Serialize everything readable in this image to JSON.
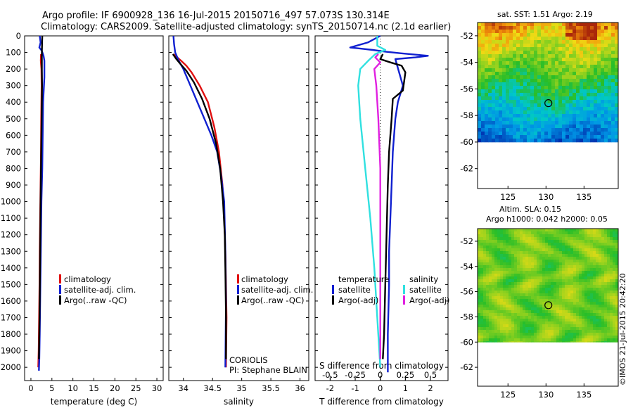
{
  "header": {
    "line1": "Argo profile: IF 6900928_136 16-Jul-2015 20150716_497 57.073S 130.314E",
    "line2": "Climatology: CARS2009. Satellite-adjusted climatology: synTS_20150714.nc (2.1d earlier)"
  },
  "footer": {
    "credit": "©IMOS 21-Jul-2015 20:42:20"
  },
  "colors": {
    "climatology": "#e01010",
    "satellite": "#1020d0",
    "argo": "#000000",
    "salinity_satellite": "#30e0e0",
    "salinity_argo": "#e020e0"
  },
  "chart_data": [
    {
      "type": "line",
      "xlabel": "temperature (deg C)",
      "xlim": [
        -1.5,
        31.5
      ],
      "xticks": [
        0,
        5,
        10,
        15,
        20,
        25,
        30
      ],
      "ylim": [
        2080,
        0
      ],
      "yticks": [
        0,
        100,
        200,
        300,
        400,
        500,
        600,
        700,
        800,
        900,
        1000,
        1100,
        1200,
        1300,
        1400,
        1500,
        1600,
        1700,
        1800,
        1900,
        2000
      ],
      "legend": {
        "position": "lower-middle",
        "entries": [
          "climatology",
          "satellite-adj. clim.",
          "Argo(..raw -QC)"
        ]
      },
      "series": [
        {
          "name": "climatology",
          "color": "#e01010",
          "x": [
            2.4,
            2.35,
            2.5,
            2.55,
            2.5,
            2.45,
            2.4,
            2.3,
            2.2,
            2.1,
            2.05,
            1.95,
            1.85,
            1.75
          ],
          "y": [
            110,
            150,
            200,
            300,
            400,
            500,
            700,
            900,
            1100,
            1300,
            1500,
            1700,
            1900,
            2000
          ]
        },
        {
          "name": "satellite-adj. clim.",
          "color": "#1020d0",
          "x": [
            2.1,
            2.3,
            2.0,
            2.6,
            3.0,
            3.2,
            3.2,
            2.9,
            2.8,
            2.7,
            2.5,
            2.4,
            2.3,
            2.2,
            2.1,
            2.0,
            1.9
          ],
          "y": [
            0,
            40,
            70,
            90,
            120,
            150,
            250,
            400,
            600,
            800,
            1000,
            1200,
            1400,
            1600,
            1800,
            1950,
            2020
          ]
        },
        {
          "name": "Argo(..raw -QC)",
          "color": "#000000",
          "x": [
            2.7,
            2.6,
            2.6,
            2.65,
            2.6,
            2.5,
            2.4,
            2.3,
            2.2,
            2.1,
            2.0,
            1.9
          ],
          "y": [
            0,
            100,
            200,
            300,
            400,
            600,
            800,
            1000,
            1300,
            1600,
            1800,
            1950
          ]
        }
      ]
    },
    {
      "type": "line",
      "xlabel": "salinity",
      "xlim": [
        33.75,
        36.15
      ],
      "xticks": [
        34,
        34.5,
        35,
        35.5,
        36
      ],
      "ylim": [
        2080,
        0
      ],
      "legend": {
        "position": "lower-right",
        "entries": [
          "climatology",
          "satellite-adj. clim.",
          "Argo(..raw -QC)"
        ]
      },
      "annotations": [
        "CORIOLIS",
        "PI: Stephane BLAIN"
      ],
      "series": [
        {
          "name": "climatology",
          "color": "#e01010",
          "x": [
            33.83,
            33.96,
            34.05,
            34.14,
            34.28,
            34.42,
            34.53,
            34.61,
            34.67,
            34.7,
            34.72,
            34.73,
            34.74,
            34.73
          ],
          "y": [
            110,
            150,
            180,
            220,
            300,
            400,
            550,
            700,
            900,
            1100,
            1300,
            1500,
            1700,
            2000
          ]
        },
        {
          "name": "satellite-adj. clim.",
          "color": "#1020d0",
          "x": [
            33.83,
            33.84,
            33.86,
            33.92,
            34.0,
            34.12,
            34.24,
            34.36,
            34.48,
            34.58,
            34.65,
            34.7,
            34.72,
            34.73,
            34.72
          ],
          "y": [
            0,
            50,
            100,
            150,
            200,
            300,
            400,
            500,
            600,
            700,
            850,
            1000,
            1300,
            1600,
            2000
          ]
        },
        {
          "name": "Argo(..raw -QC)",
          "color": "#000000",
          "x": [
            33.82,
            33.88,
            33.95,
            34.05,
            34.18,
            34.32,
            34.45,
            34.56,
            34.63,
            34.68,
            34.71,
            34.72,
            34.73,
            34.73
          ],
          "y": [
            110,
            140,
            170,
            210,
            280,
            380,
            500,
            650,
            800,
            1000,
            1200,
            1400,
            1700,
            1950
          ]
        }
      ]
    },
    {
      "type": "line",
      "xlabel": "T difference from climatology",
      "x2label": "S difference from climatology",
      "xlim": [
        -2.6,
        2.7
      ],
      "xticks": [
        -2,
        -1,
        0,
        1,
        2
      ],
      "x2lim": [
        -0.65,
        0.675
      ],
      "x2ticks": [
        -0.5,
        -0.25,
        0,
        0.25,
        0.5
      ],
      "ylim": [
        2080,
        0
      ],
      "legend": {
        "position": "lower-middle",
        "groups": [
          "temperature",
          "salinity"
        ],
        "entries": [
          "satellite",
          "Argo(-adj)",
          "satellite",
          "Argo(-adj)"
        ]
      },
      "series": [
        {
          "name": "satellite",
          "group": "temperature",
          "color": "#1020d0",
          "x": [
            0.0,
            -0.5,
            -1.2,
            -0.3,
            0.2,
            0.8,
            1.9,
            1.4,
            0.6,
            0.9,
            0.7,
            0.6,
            0.5,
            0.45,
            0.4,
            0.35,
            0.35,
            0.3,
            0.3
          ],
          "y": [
            0,
            40,
            70,
            85,
            95,
            105,
            120,
            130,
            140,
            300,
            400,
            500,
            700,
            900,
            1100,
            1300,
            1500,
            1800,
            2030
          ]
        },
        {
          "name": "Argo(-adj)",
          "group": "temperature",
          "color": "#000000",
          "x": [
            0.1,
            0.0,
            0.4,
            0.85,
            1.0,
            0.9,
            0.5,
            0.45,
            0.35,
            0.3,
            0.25,
            0.2,
            0.15,
            0.1
          ],
          "y": [
            110,
            140,
            160,
            180,
            220,
            330,
            380,
            500,
            700,
            900,
            1200,
            1500,
            1800,
            1950
          ]
        },
        {
          "name": "satellite",
          "group": "salinity",
          "color": "#30e0e0",
          "x": [
            -0.03,
            -0.03,
            0.05,
            -0.05,
            -0.12,
            -0.2,
            -0.22,
            -0.2,
            -0.15,
            -0.1,
            -0.06,
            -0.03,
            0.0
          ],
          "y": [
            0,
            60,
            85,
            110,
            150,
            200,
            300,
            500,
            800,
            1100,
            1400,
            1700,
            2000
          ]
        },
        {
          "name": "Argo(-adj)",
          "group": "salinity",
          "color": "#e020e0",
          "x": [
            -0.02,
            -0.05,
            0.0,
            -0.06,
            -0.04,
            -0.02,
            0.0,
            0.0
          ],
          "y": [
            110,
            130,
            160,
            200,
            300,
            500,
            800,
            1950
          ]
        }
      ]
    },
    {
      "type": "heatmap",
      "title": "sat. SST: 1.51  Argo: 2.19",
      "xticks": [
        125,
        130,
        135
      ],
      "yticks": [
        -52,
        -54,
        -56,
        -58,
        -60,
        -62
      ],
      "xlim": [
        121,
        139.5
      ],
      "ylim": [
        -63.5,
        -51
      ],
      "data_extent_lat": [
        -60,
        -51
      ],
      "marker": {
        "lon": 130.314,
        "lat": -57.073
      }
    },
    {
      "type": "heatmap",
      "title": "Altim. SLA: 0.15",
      "subtitle": "Argo h1000: 0.042  h2000: 0.05",
      "xticks": [
        125,
        130,
        135
      ],
      "yticks": [
        -52,
        -54,
        -56,
        -58,
        -60,
        -62
      ],
      "xlim": [
        121,
        139.5
      ],
      "ylim": [
        -63.5,
        -51
      ],
      "data_extent_lat": [
        -60,
        -51
      ],
      "marker": {
        "lon": 130.314,
        "lat": -57.073
      }
    }
  ]
}
